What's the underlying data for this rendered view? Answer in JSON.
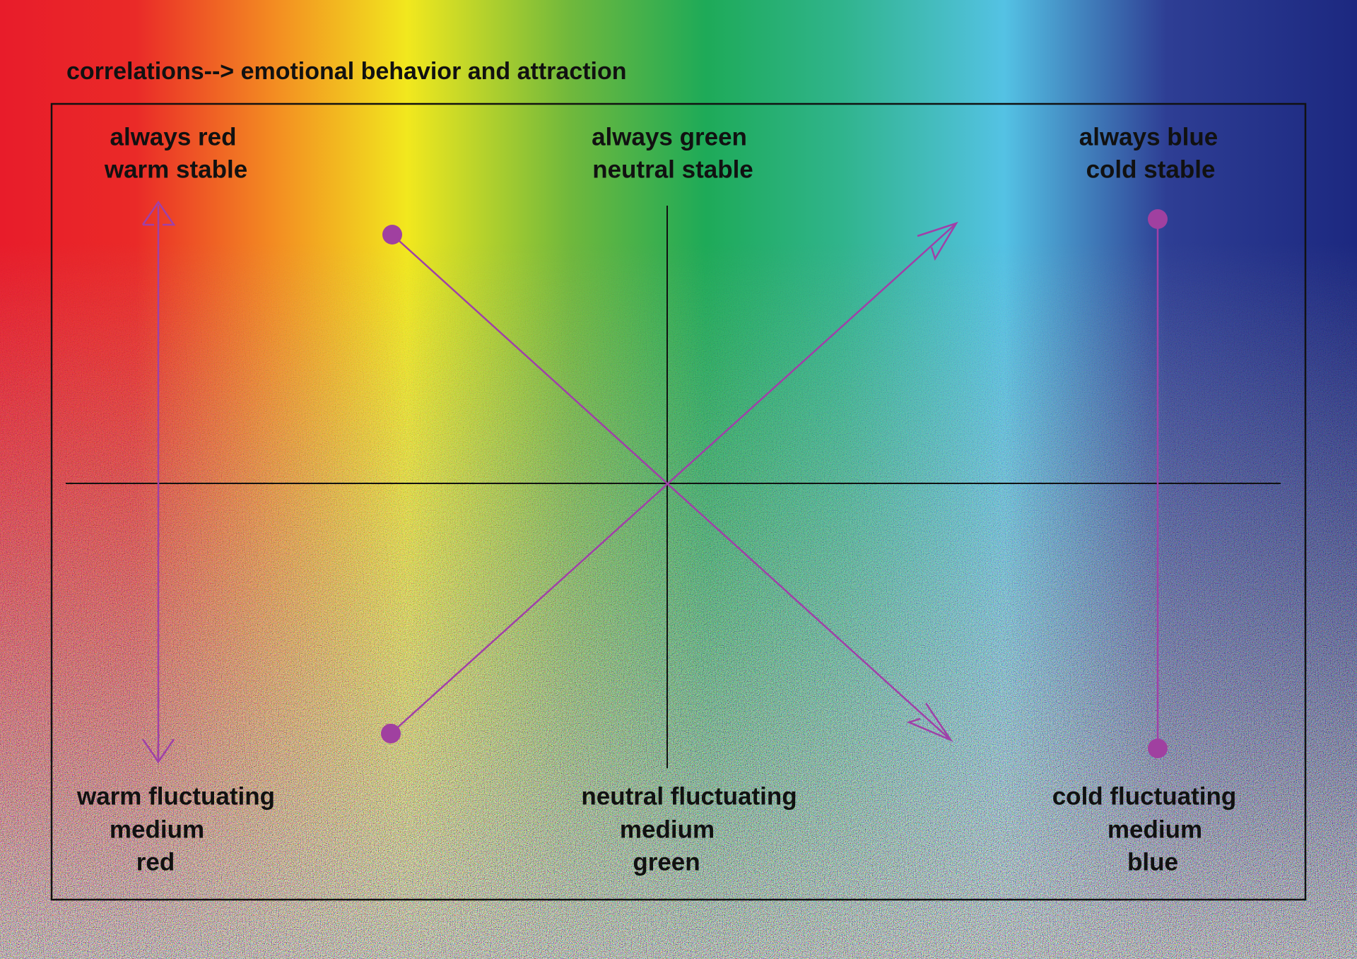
{
  "header": {
    "title": "correlations--> emotional behavior and attraction"
  },
  "labels": {
    "top_left": [
      "always red",
      "warm stable"
    ],
    "top_center": [
      "always green",
      "neutral stable"
    ],
    "top_right": [
      "always blue",
      "cold stable"
    ],
    "bottom_left": [
      "warm fluctuating",
      "medium",
      "red"
    ],
    "bottom_center": [
      "neutral fluctuating",
      "medium",
      "green"
    ],
    "bottom_right": [
      "cold fluctuating",
      "medium",
      "blue"
    ]
  }
}
